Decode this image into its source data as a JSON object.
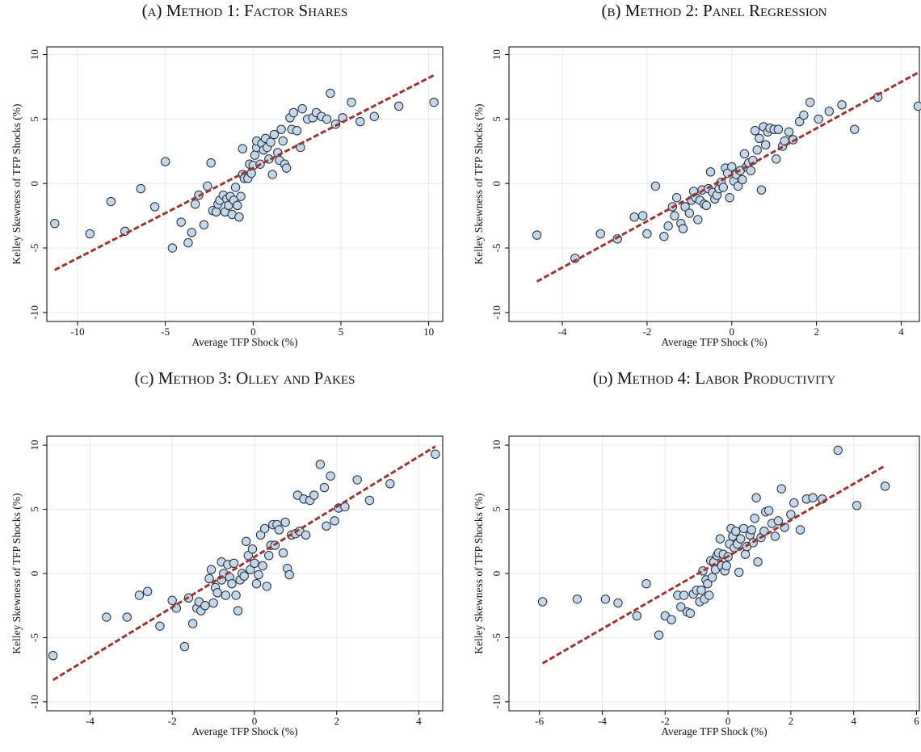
{
  "chart_data": [
    {
      "type": "scatter",
      "title": "(a) Method 1: Factor Shares",
      "xlabel": "Average TFP Shock (%)",
      "ylabel": "Kelley Skewness of TFP Shocks (%)",
      "xlim": [
        -11.75,
        10.8
      ],
      "ylim": [
        -10.7,
        10.6
      ],
      "xticks": [
        -10,
        -5,
        0,
        5,
        10
      ],
      "yticks": [
        -10,
        -5,
        0,
        5,
        10
      ],
      "grid": true,
      "series": [
        {
          "style": "points",
          "color": "#c5d6e8",
          "x": [
            -11.3,
            -9.3,
            -8.1,
            -7.3,
            -6.4,
            -5.6,
            -5.0,
            -4.6,
            -4.1,
            -3.7,
            -3.5,
            -3.3,
            -3.1,
            -2.8,
            -2.6,
            -2.4,
            -2.3,
            -2.1,
            -2.0,
            -1.9,
            -1.7,
            -1.6,
            -1.5,
            -1.4,
            -1.3,
            -1.2,
            -1.1,
            -1.0,
            -0.9,
            -0.8,
            -0.7,
            -0.6,
            -0.6,
            -0.5,
            -0.3,
            -0.2,
            -0.1,
            0.0,
            0.1,
            0.2,
            0.2,
            0.4,
            0.5,
            0.6,
            0.7,
            0.8,
            0.9,
            1.0,
            1.1,
            1.2,
            1.4,
            1.5,
            1.6,
            1.7,
            1.8,
            1.9,
            2.1,
            2.2,
            2.3,
            2.5,
            2.7,
            2.8,
            3.1,
            3.4,
            3.6,
            3.9,
            4.2,
            4.4,
            4.7,
            5.1,
            5.6,
            6.1,
            6.9,
            8.3,
            10.3
          ],
          "values": [
            -3.1,
            -3.9,
            -1.4,
            -3.7,
            -0.4,
            -1.8,
            1.7,
            -5.0,
            -3.0,
            -4.6,
            -3.8,
            -1.6,
            -0.9,
            -3.2,
            -0.2,
            1.6,
            -2.1,
            -2.2,
            -1.6,
            -1.3,
            -0.9,
            -2.2,
            -1.2,
            -1.7,
            -1.0,
            -2.4,
            -1.3,
            -0.3,
            -1.7,
            -2.6,
            -1.0,
            0.7,
            2.7,
            0.4,
            0.4,
            1.5,
            0.8,
            1.4,
            2.2,
            2.8,
            3.3,
            1.5,
            3.1,
            2.6,
            3.5,
            2.8,
            1.9,
            3.2,
            0.7,
            3.8,
            2.4,
            1.8,
            4.2,
            3.3,
            1.5,
            1.2,
            5.1,
            4.2,
            5.5,
            4.1,
            2.8,
            5.8,
            5.0,
            5.1,
            5.5,
            5.2,
            5.0,
            7.0,
            4.6,
            5.1,
            6.3,
            4.8,
            5.2,
            6.0,
            6.3
          ]
        },
        {
          "style": "dashed-line",
          "color": "#9b3535",
          "x": [
            -11.3,
            10.3
          ],
          "values": [
            -6.7,
            8.4
          ]
        }
      ]
    },
    {
      "type": "scatter",
      "title": "(b) Method 2: Panel Regression",
      "xlabel": "Average TFP Shock (%)",
      "ylabel": "Kelley Skewness of TFP Shocks (%)",
      "xlim": [
        -5.26,
        4.43
      ],
      "ylim": [
        -10.7,
        10.6
      ],
      "xticks": [
        -4,
        -2,
        0,
        2,
        4
      ],
      "yticks": [
        -10,
        -5,
        0,
        5,
        10
      ],
      "grid": true,
      "series": [
        {
          "style": "points",
          "color": "#c5d6e8",
          "x": [
            -4.6,
            -3.7,
            -3.1,
            -2.7,
            -2.3,
            -2.1,
            -2.0,
            -1.8,
            -1.6,
            -1.5,
            -1.4,
            -1.35,
            -1.3,
            -1.2,
            -1.15,
            -1.1,
            -1.0,
            -0.95,
            -0.9,
            -0.85,
            -0.8,
            -0.75,
            -0.7,
            -0.65,
            -0.6,
            -0.55,
            -0.5,
            -0.45,
            -0.4,
            -0.35,
            -0.3,
            -0.25,
            -0.2,
            -0.15,
            -0.1,
            -0.05,
            0.0,
            0.05,
            0.1,
            0.15,
            0.2,
            0.25,
            0.3,
            0.35,
            0.4,
            0.45,
            0.5,
            0.55,
            0.6,
            0.65,
            0.7,
            0.75,
            0.8,
            0.85,
            0.9,
            1.0,
            1.05,
            1.1,
            1.2,
            1.25,
            1.35,
            1.45,
            1.6,
            1.7,
            1.85,
            2.05,
            2.3,
            2.6,
            2.9,
            3.45,
            4.4
          ],
          "values": [
            -4.0,
            -5.8,
            -3.9,
            -4.3,
            -2.6,
            -2.5,
            -3.9,
            -0.2,
            -4.1,
            -3.3,
            -1.8,
            -2.5,
            -1.1,
            -3.1,
            -3.5,
            -1.8,
            -2.3,
            -1.3,
            -0.6,
            -1.1,
            -2.8,
            -1.3,
            -0.5,
            -1.6,
            -1.7,
            -0.4,
            0.9,
            -0.7,
            -1.2,
            -0.9,
            -0.4,
            0.1,
            -0.3,
            1.2,
            0.8,
            -1.1,
            1.3,
            0.2,
            0.7,
            -0.2,
            1.0,
            0.3,
            2.3,
            1.3,
            1.6,
            1.0,
            1.8,
            4.1,
            2.6,
            3.5,
            -0.5,
            4.4,
            3.0,
            4.0,
            4.3,
            4.2,
            1.9,
            4.2,
            2.9,
            3.3,
            4.0,
            3.4,
            4.8,
            5.3,
            6.3,
            5.0,
            5.6,
            6.1,
            4.2,
            6.7,
            6.0
          ]
        },
        {
          "style": "dashed-line",
          "color": "#9b3535",
          "x": [
            -4.6,
            4.4
          ],
          "values": [
            -7.6,
            8.6
          ]
        }
      ]
    },
    {
      "type": "scatter",
      "title": "(c) Method 3: Olley and Pakes",
      "xlabel": "Average TFP Shock (%)",
      "ylabel": "Kelley Skewness of TFP Shocks (%)",
      "xlim": [
        -5.05,
        4.58
      ],
      "ylim": [
        -10.7,
        10.7
      ],
      "xticks": [
        -4,
        -2,
        0,
        2,
        4
      ],
      "yticks": [
        -10,
        -5,
        0,
        5,
        10
      ],
      "grid": true,
      "series": [
        {
          "style": "points",
          "color": "#c5d6e8",
          "x": [
            -4.9,
            -3.6,
            -3.1,
            -2.8,
            -2.6,
            -2.3,
            -2.0,
            -1.9,
            -1.7,
            -1.6,
            -1.5,
            -1.4,
            -1.35,
            -1.3,
            -1.2,
            -1.1,
            -1.05,
            -1.0,
            -0.95,
            -0.9,
            -0.8,
            -0.8,
            -0.75,
            -0.7,
            -0.65,
            -0.6,
            -0.55,
            -0.5,
            -0.45,
            -0.4,
            -0.35,
            -0.3,
            -0.25,
            -0.2,
            -0.15,
            -0.1,
            -0.05,
            0.0,
            0.05,
            0.1,
            0.15,
            0.2,
            0.25,
            0.3,
            0.35,
            0.4,
            0.45,
            0.5,
            0.55,
            0.6,
            0.7,
            0.75,
            0.8,
            0.85,
            0.9,
            1.0,
            1.05,
            1.1,
            1.2,
            1.25,
            1.35,
            1.45,
            1.6,
            1.7,
            1.75,
            1.85,
            1.95,
            2.05,
            2.2,
            2.5,
            2.8,
            3.3,
            4.4
          ],
          "values": [
            -6.4,
            -3.4,
            -3.4,
            -1.7,
            -1.4,
            -4.1,
            -2.1,
            -2.7,
            -5.7,
            -1.9,
            -3.9,
            -2.7,
            -2.2,
            -2.9,
            -2.5,
            -0.4,
            0.3,
            -2.3,
            -1.1,
            -1.5,
            -0.5,
            0.9,
            0.0,
            -1.7,
            0.7,
            -0.3,
            -0.8,
            0.8,
            -1.7,
            -2.9,
            -0.5,
            0.0,
            -0.2,
            2.5,
            1.4,
            0.3,
            1.9,
            0.8,
            -0.8,
            -0.1,
            3.0,
            0.6,
            3.5,
            -1.0,
            1.4,
            2.2,
            3.8,
            2.2,
            3.8,
            3.4,
            1.6,
            4.0,
            0.4,
            -0.1,
            3.0,
            3.1,
            6.1,
            3.3,
            5.8,
            3.0,
            5.7,
            6.1,
            8.5,
            6.7,
            3.7,
            7.6,
            4.1,
            5.1,
            5.2,
            7.3,
            5.7,
            7.0,
            9.3
          ]
        },
        {
          "style": "dashed-line",
          "color": "#9b3535",
          "x": [
            -4.9,
            4.4
          ],
          "values": [
            -8.3,
            9.9
          ]
        }
      ]
    },
    {
      "type": "scatter",
      "title": "(d) Method 4: Labor Productivity",
      "xlabel": "Average TFP Shock (%)",
      "ylabel": "Kelley Skewness of TFP Shocks (%)",
      "xlim": [
        -6.97,
        6.09
      ],
      "ylim": [
        -10.7,
        10.7
      ],
      "xticks": [
        -6,
        -4,
        -2,
        0,
        2,
        4,
        6
      ],
      "yticks": [
        -10,
        -5,
        0,
        5,
        10
      ],
      "grid": true,
      "series": [
        {
          "style": "points",
          "color": "#c5d6e8",
          "x": [
            -5.9,
            -4.8,
            -3.9,
            -3.5,
            -2.9,
            -2.6,
            -2.2,
            -2.0,
            -1.8,
            -1.6,
            -1.5,
            -1.4,
            -1.3,
            -1.2,
            -1.1,
            -1.0,
            -0.9,
            -0.85,
            -0.8,
            -0.75,
            -0.7,
            -0.65,
            -0.6,
            -0.55,
            -0.5,
            -0.45,
            -0.4,
            -0.35,
            -0.3,
            -0.25,
            -0.2,
            -0.15,
            -0.1,
            -0.05,
            0.0,
            0.05,
            0.1,
            0.15,
            0.2,
            0.25,
            0.3,
            0.35,
            0.4,
            0.5,
            0.55,
            0.6,
            0.7,
            0.75,
            0.8,
            0.85,
            0.9,
            0.95,
            1.05,
            1.15,
            1.2,
            1.3,
            1.4,
            1.5,
            1.6,
            1.7,
            1.8,
            2.0,
            2.1,
            2.3,
            2.5,
            2.7,
            3.0,
            3.5,
            4.1,
            5.0
          ],
          "values": [
            -2.2,
            -2.0,
            -2.0,
            -2.3,
            -3.3,
            -0.8,
            -4.8,
            -3.3,
            -3.6,
            -1.7,
            -2.6,
            -1.7,
            -3.0,
            -3.1,
            -1.6,
            -1.3,
            -2.2,
            -1.3,
            0.2,
            -2.0,
            -0.5,
            -0.8,
            -1.7,
            1.0,
            -0.3,
            0.9,
            0.3,
            1.4,
            1.6,
            2.7,
            0.6,
            1.5,
            0.2,
            0.6,
            1.3,
            2.3,
            3.5,
            2.9,
            2.0,
            3.3,
            2.3,
            0.1,
            2.7,
            3.5,
            1.5,
            2.1,
            3.0,
            3.4,
            2.4,
            4.3,
            5.9,
            0.9,
            2.8,
            3.3,
            4.8,
            4.9,
            3.9,
            2.9,
            4.1,
            6.6,
            3.6,
            4.6,
            5.5,
            3.4,
            5.8,
            5.9,
            5.8,
            9.6,
            5.3,
            6.8
          ]
        },
        {
          "style": "dashed-line",
          "color": "#9b3535",
          "x": [
            -5.9,
            5.0
          ],
          "values": [
            -7.0,
            8.4
          ]
        }
      ]
    }
  ]
}
